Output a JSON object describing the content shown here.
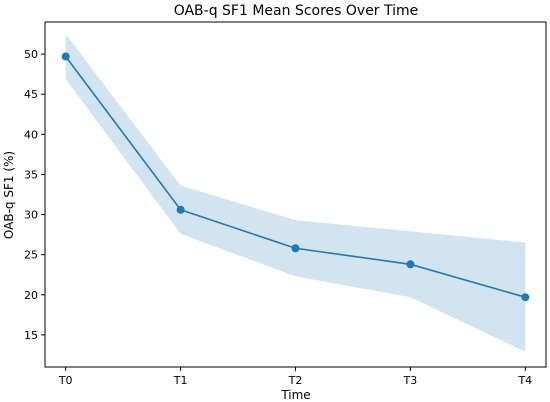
{
  "chart_data": {
    "type": "line",
    "title": "OAB-q SF1 Mean Scores Over Time",
    "xlabel": "Time",
    "ylabel": "OAB-q SF1 (%)",
    "categories": [
      "T0",
      "T1",
      "T2",
      "T3",
      "T4"
    ],
    "series": [
      {
        "values": [
          49.7,
          30.6,
          25.8,
          23.8,
          19.7
        ],
        "lower": [
          46.9,
          27.6,
          22.3,
          19.7,
          12.9
        ],
        "upper": [
          52.5,
          33.6,
          29.3,
          27.9,
          26.5
        ]
      }
    ],
    "ylim": [
      11,
      54
    ],
    "yticks": [
      15,
      20,
      25,
      30,
      35,
      40,
      45,
      50
    ],
    "grid": false,
    "colors": {
      "line": "#1f77b4",
      "band": "#1f77b4"
    }
  }
}
